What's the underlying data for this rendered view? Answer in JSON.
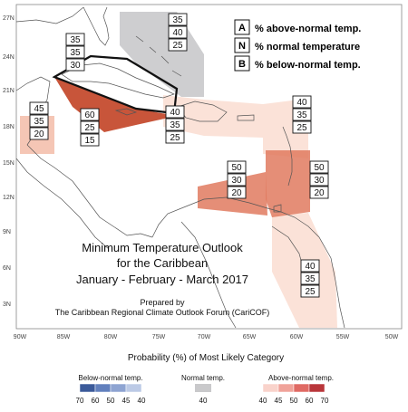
{
  "legend_key": {
    "items": [
      {
        "letter": "A",
        "text": "% above-normal temp."
      },
      {
        "letter": "N",
        "text": "% normal temperature"
      },
      {
        "letter": "B",
        "text": "% below-normal temp."
      }
    ]
  },
  "title": {
    "line1": "Minimum Temperature Outlook",
    "line2": "for the Caribbean",
    "line3": "January - February - March 2017"
  },
  "credit": {
    "line1": "Prepared by",
    "line2": "The Caribbean Regional Climate Outlook Forum (CariCOF)"
  },
  "axes": {
    "lat_labels": [
      "27N",
      "24N",
      "21N",
      "18N",
      "15N",
      "12N",
      "9N",
      "6N",
      "3N"
    ],
    "lon_labels": [
      "90W",
      "85W",
      "80W",
      "75W",
      "70W",
      "65W",
      "60W",
      "55W",
      "50W"
    ]
  },
  "regions": [
    {
      "id": "bahamas",
      "probs": [
        "35",
        "40",
        "25"
      ],
      "fill": "#c9c9cb"
    },
    {
      "id": "cuba-outline",
      "probs": [
        "35",
        "35",
        "30"
      ],
      "fill": "none"
    },
    {
      "id": "cayman-jamaica",
      "probs": [
        "60",
        "25",
        "15"
      ],
      "fill": "#c8553a"
    },
    {
      "id": "belize",
      "probs": [
        "45",
        "35",
        "20"
      ],
      "fill": "#f5c6b5"
    },
    {
      "id": "hispaniola",
      "probs": [
        "40",
        "35",
        "25"
      ],
      "fill": "#fbe2d8"
    },
    {
      "id": "leeward",
      "probs": [
        "40",
        "35",
        "25"
      ],
      "fill": "#fbe2d8"
    },
    {
      "id": "abc-islands",
      "probs": [
        "50",
        "30",
        "20"
      ],
      "fill": "#e07a5f"
    },
    {
      "id": "windward",
      "probs": [
        "50",
        "30",
        "20"
      ],
      "fill": "#e07a5f"
    },
    {
      "id": "guianas",
      "probs": [
        "40",
        "35",
        "25"
      ],
      "fill": "#fbe2d8"
    }
  ],
  "colorbar": {
    "title": "Probability (%) of Most Likely Category",
    "below": {
      "label": "Below-normal temp.",
      "ticks": [
        "70",
        "60",
        "50",
        "45",
        "40"
      ],
      "colors": [
        "#3b5a9a",
        "#6280bd",
        "#8ea4d2",
        "#bccae6"
      ]
    },
    "normal": {
      "label": "Normal temp.",
      "ticks": [
        "40"
      ],
      "color": "#c9c9cb"
    },
    "above": {
      "label": "Above-normal temp.",
      "ticks": [
        "40",
        "45",
        "50",
        "60",
        "70"
      ],
      "colors": [
        "#f9d3cb",
        "#f0a39a",
        "#e06a64",
        "#b9363a"
      ]
    }
  }
}
